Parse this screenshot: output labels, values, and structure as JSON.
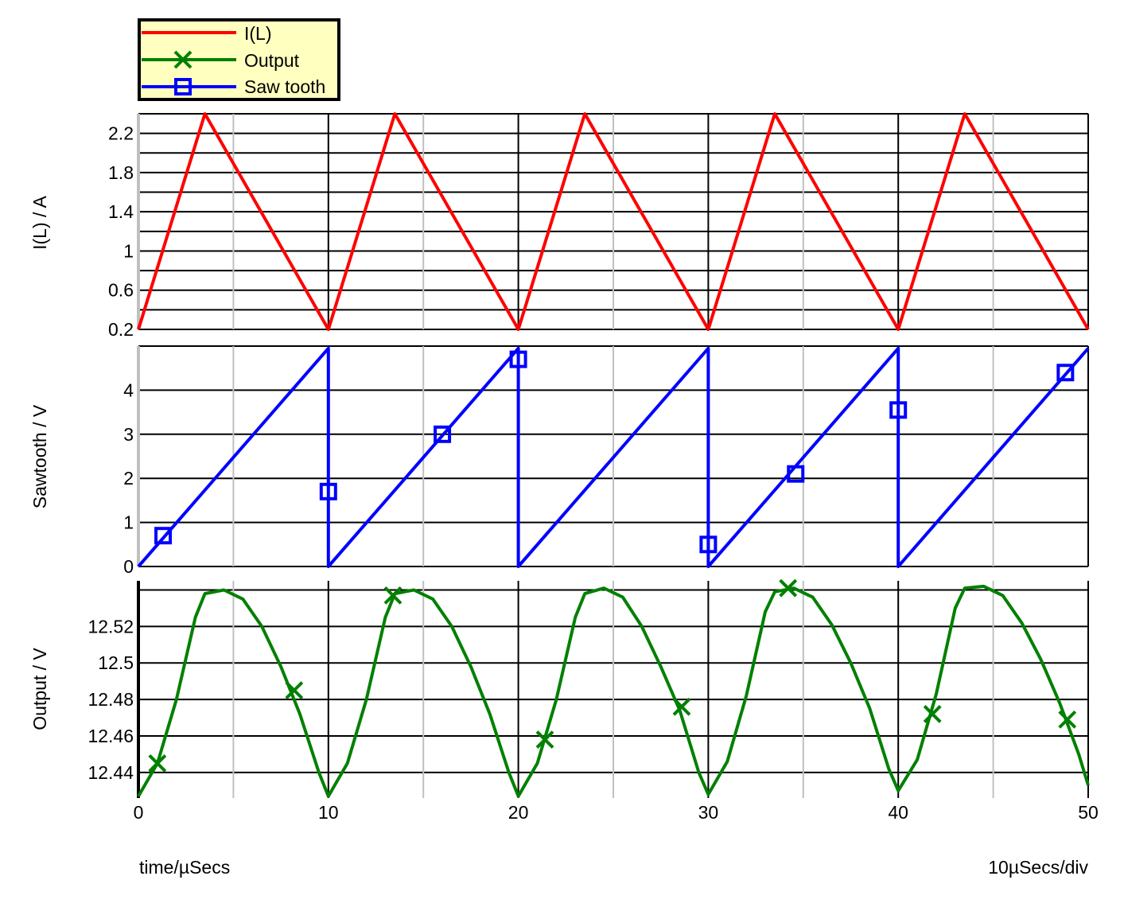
{
  "chart_data": [
    {
      "type": "line",
      "ylabel": "I(L) / A",
      "ylim": [
        0.2,
        2.4
      ],
      "yticks": [
        0.2,
        0.6,
        1,
        1.4,
        1.8,
        2.2
      ],
      "ytick_labels": [
        "0.2",
        "0.6",
        "1",
        "1.4",
        "1.8",
        "2.2"
      ],
      "series": [
        {
          "name": "I(L)",
          "color": "#ff0000",
          "marker": "none",
          "points": [
            [
              0,
              0.2
            ],
            [
              3.5,
              2.4
            ],
            [
              10,
              0.2
            ],
            [
              13.5,
              2.4
            ],
            [
              20,
              0.2
            ],
            [
              23.5,
              2.4
            ],
            [
              30,
              0.2
            ],
            [
              33.5,
              2.4
            ],
            [
              40,
              0.2
            ],
            [
              43.5,
              2.4
            ],
            [
              50,
              0.2
            ]
          ]
        }
      ]
    },
    {
      "type": "line",
      "ylabel": "Sawtooth / V",
      "ylim": [
        0,
        5
      ],
      "yticks": [
        0,
        1,
        2,
        3,
        4
      ],
      "ytick_labels": [
        "0",
        "1",
        "2",
        "3",
        "4"
      ],
      "series": [
        {
          "name": "Saw tooth",
          "color": "#0000ff",
          "marker": "square",
          "points": [
            [
              0,
              0
            ],
            [
              10,
              4.95
            ],
            [
              10,
              0
            ],
            [
              20,
              4.95
            ],
            [
              20,
              0
            ],
            [
              30,
              4.95
            ],
            [
              30,
              0
            ],
            [
              40,
              4.95
            ],
            [
              40,
              0
            ],
            [
              50,
              4.95
            ]
          ],
          "markers": [
            [
              1.3,
              0.7
            ],
            [
              10,
              1.7
            ],
            [
              16,
              3.0
            ],
            [
              20,
              4.7
            ],
            [
              30,
              0.5
            ],
            [
              34.6,
              2.1
            ],
            [
              40,
              3.55
            ],
            [
              48.8,
              4.4
            ]
          ]
        }
      ]
    },
    {
      "type": "line",
      "ylabel": "Output / V",
      "ylim": [
        12.426,
        12.545
      ],
      "yticks": [
        12.44,
        12.46,
        12.48,
        12.5,
        12.52
      ],
      "ytick_labels": [
        "12.44",
        "12.46",
        "12.48",
        "12.5",
        "12.52"
      ],
      "series": [
        {
          "name": "Output",
          "color": "#008000",
          "marker": "x",
          "points": [
            [
              0,
              12.427
            ],
            [
              1,
              12.445
            ],
            [
              2,
              12.48
            ],
            [
              3,
              12.525
            ],
            [
              3.5,
              12.538
            ],
            [
              4.5,
              12.54
            ],
            [
              5.5,
              12.535
            ],
            [
              6.5,
              12.52
            ],
            [
              7.5,
              12.498
            ],
            [
              8.5,
              12.472
            ],
            [
              9.5,
              12.44
            ],
            [
              10,
              12.427
            ],
            [
              11,
              12.445
            ],
            [
              12,
              12.48
            ],
            [
              13,
              12.525
            ],
            [
              13.5,
              12.538
            ],
            [
              14.5,
              12.54
            ],
            [
              15.5,
              12.535
            ],
            [
              16.5,
              12.52
            ],
            [
              17.5,
              12.498
            ],
            [
              18.5,
              12.472
            ],
            [
              19.5,
              12.44
            ],
            [
              20,
              12.427
            ],
            [
              21,
              12.445
            ],
            [
              22,
              12.48
            ],
            [
              23,
              12.525
            ],
            [
              23.5,
              12.538
            ],
            [
              24.5,
              12.541
            ],
            [
              25.5,
              12.536
            ],
            [
              26.5,
              12.52
            ],
            [
              27.5,
              12.498
            ],
            [
              28.5,
              12.474
            ],
            [
              29.5,
              12.44
            ],
            [
              30,
              12.428
            ],
            [
              31,
              12.446
            ],
            [
              32,
              12.482
            ],
            [
              33,
              12.528
            ],
            [
              33.5,
              12.539
            ],
            [
              34.5,
              12.541
            ],
            [
              35.5,
              12.536
            ],
            [
              36.5,
              12.521
            ],
            [
              37.5,
              12.5
            ],
            [
              38.5,
              12.475
            ],
            [
              39.5,
              12.442
            ],
            [
              40,
              12.43
            ],
            [
              41,
              12.447
            ],
            [
              42,
              12.483
            ],
            [
              43,
              12.53
            ],
            [
              43.5,
              12.541
            ],
            [
              44.5,
              12.542
            ],
            [
              45.5,
              12.537
            ],
            [
              46.5,
              12.522
            ],
            [
              47.5,
              12.502
            ],
            [
              48.5,
              12.478
            ],
            [
              49.5,
              12.45
            ],
            [
              50,
              12.433
            ]
          ],
          "markers": [
            [
              1,
              12.445
            ],
            [
              8.2,
              12.485
            ],
            [
              13.4,
              12.537
            ],
            [
              21.4,
              12.458
            ],
            [
              28.6,
              12.476
            ],
            [
              34.2,
              12.541
            ],
            [
              41.8,
              12.472
            ],
            [
              48.9,
              12.469
            ]
          ]
        }
      ]
    }
  ],
  "xaxis": {
    "xlim": [
      0,
      50
    ],
    "ticks": [
      0,
      10,
      20,
      30,
      40,
      50
    ],
    "tick_labels": [
      "0",
      "10",
      "20",
      "30",
      "40",
      "50"
    ],
    "xlabel": "time/µSecs",
    "scale_label": "10µSecs/div"
  },
  "legend": {
    "placement": "top-left",
    "background": "#ffffc0",
    "items": [
      {
        "label": "I(L)",
        "color": "#ff0000",
        "marker": "none"
      },
      {
        "label": "Output",
        "color": "#008000",
        "marker": "x"
      },
      {
        "label": "Saw tooth",
        "color": "#0000ff",
        "marker": "square"
      }
    ]
  },
  "grid": true
}
